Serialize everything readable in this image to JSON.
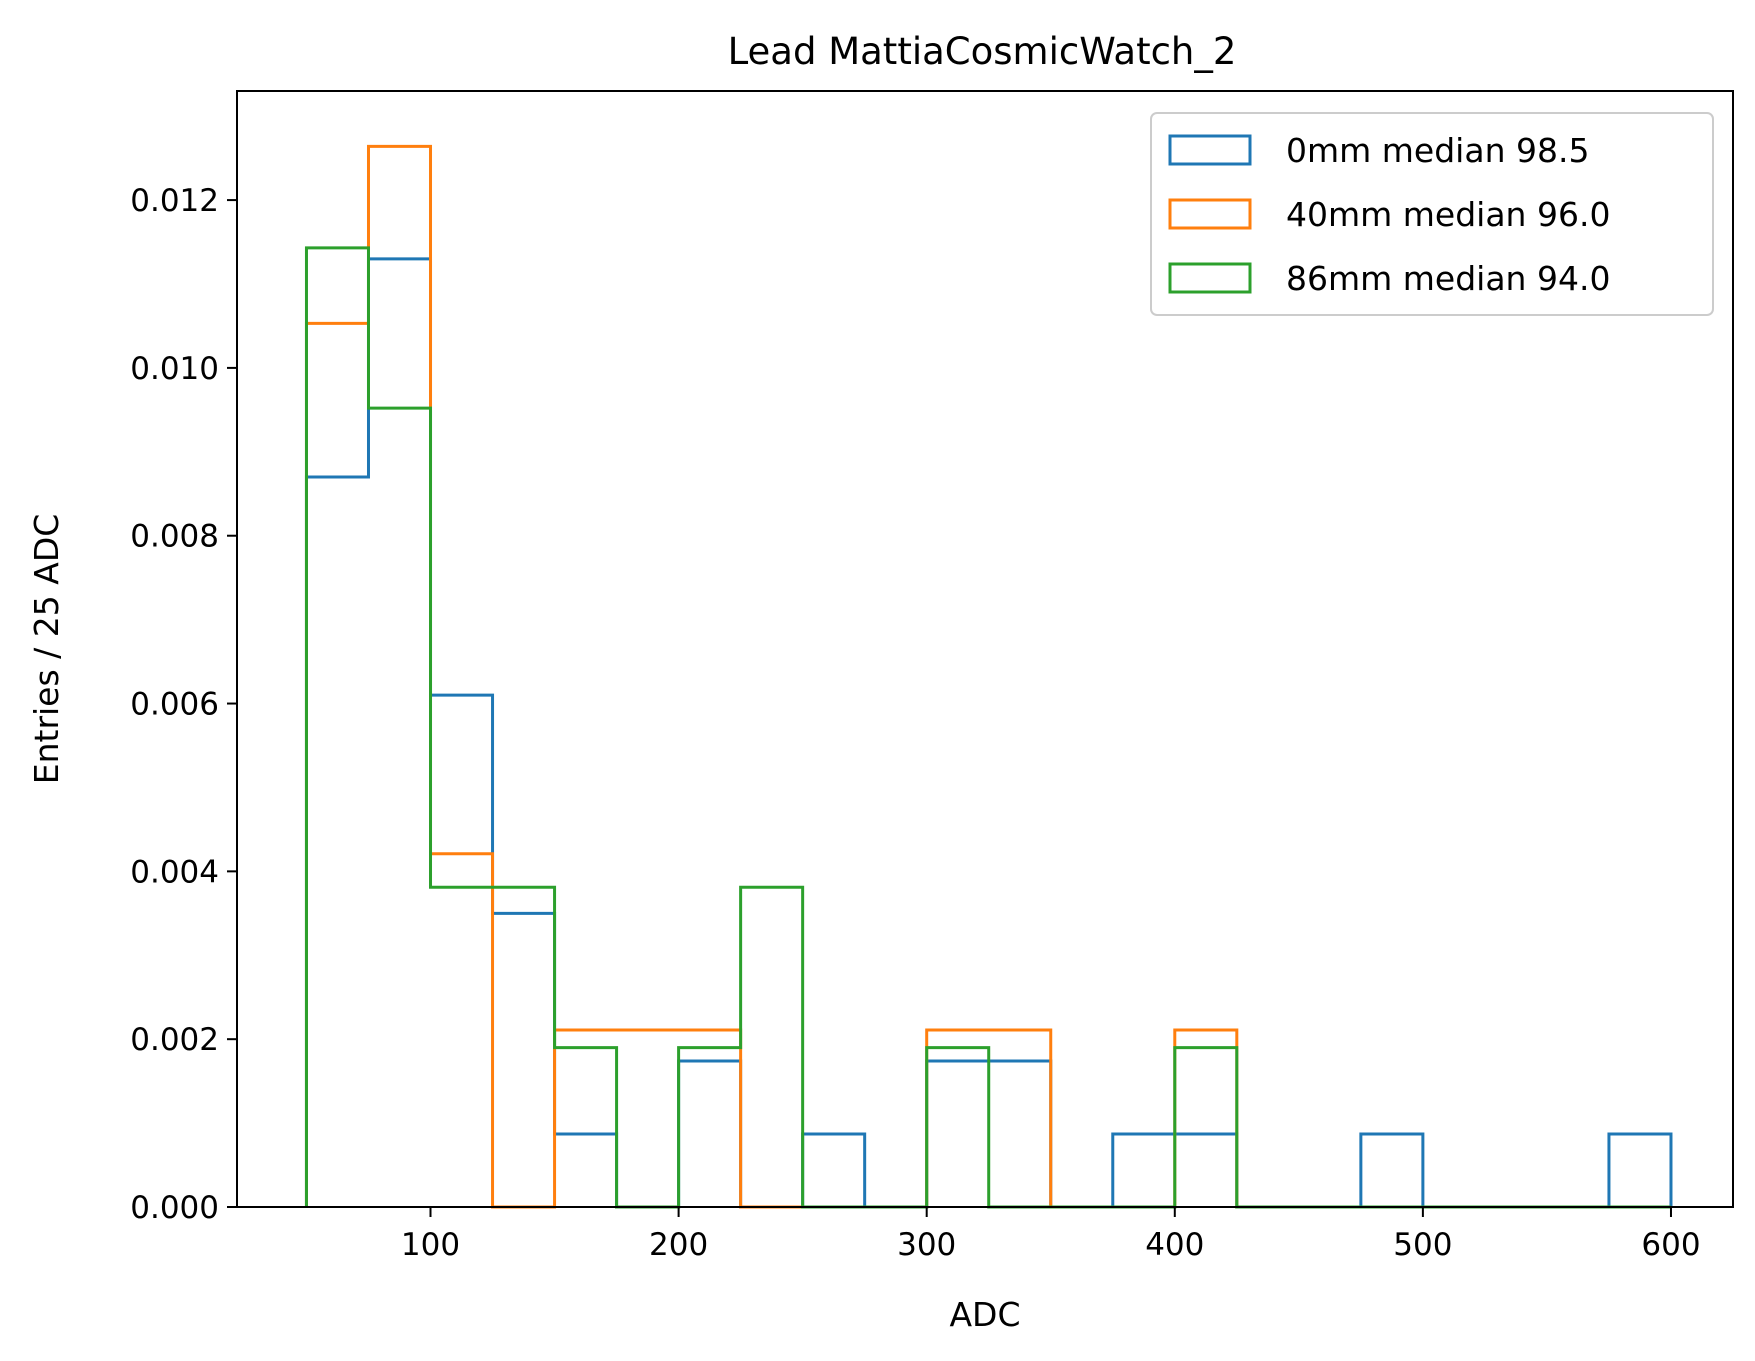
{
  "chart_data": {
    "type": "histogram-step",
    "title": "Lead MattiaCosmicWatch_2",
    "xlabel": "ADC",
    "ylabel": "Entries / 25 ADC",
    "xlim": [
      22,
      625
    ],
    "ylim": [
      0,
      0.0133
    ],
    "xticks": [
      100,
      200,
      300,
      400,
      500,
      600
    ],
    "yticks": [
      0.0,
      0.002,
      0.004,
      0.006,
      0.008,
      0.01,
      0.012
    ],
    "ytick_labels": [
      "0.000",
      "0.002",
      "0.004",
      "0.006",
      "0.008",
      "0.010",
      "0.012"
    ],
    "bin_edges": [
      50,
      75,
      100,
      125,
      150,
      175,
      200,
      225,
      250,
      275,
      300,
      325,
      350,
      375,
      400,
      425,
      450,
      475,
      500,
      525,
      550,
      575,
      600
    ],
    "legend_position": "upper-right",
    "grid": false,
    "series": [
      {
        "name": "0mm median 98.5",
        "color": "#1f77b4",
        "values": [
          0.0087,
          0.0113,
          0.0061,
          0.0035,
          0.00087,
          0,
          0.00174,
          0,
          0.00087,
          0,
          0.00174,
          0.00174,
          0,
          0.00087,
          0.00087,
          0,
          0,
          0.00087,
          0,
          0,
          0,
          0.00087
        ]
      },
      {
        "name": "40mm median 96.0",
        "color": "#ff7f0e",
        "values": [
          0.01053,
          0.01264,
          0.00421,
          0,
          0.00211,
          0.00211,
          0.00211,
          0,
          0,
          0,
          0.00211,
          0.00211,
          0,
          0,
          0.00211,
          0,
          0,
          0,
          0,
          0,
          0,
          0
        ]
      },
      {
        "name": "86mm median 94.0",
        "color": "#2ca02c",
        "values": [
          0.01143,
          0.00952,
          0.00381,
          0.00381,
          0.0019,
          0,
          0.0019,
          0.00381,
          0,
          0,
          0.0019,
          0,
          0,
          0,
          0.0019,
          0,
          0,
          0,
          0,
          0,
          0,
          0
        ]
      }
    ]
  }
}
